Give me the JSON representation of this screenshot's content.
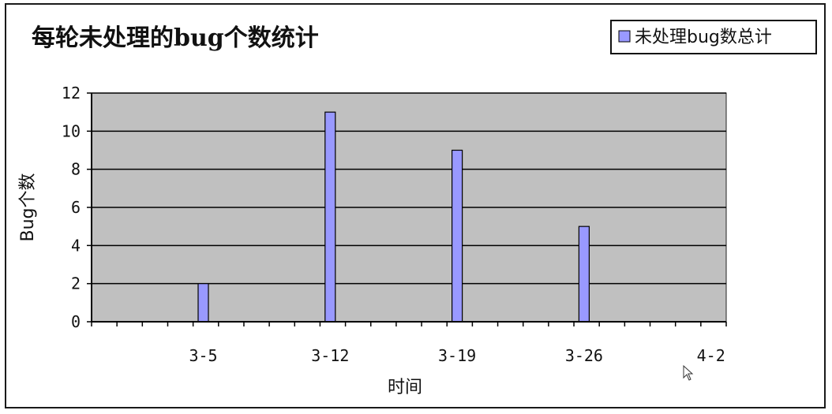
{
  "colors": {
    "plot_background": "#c0c0c0",
    "bar_fill": "#9999ff",
    "bar_stroke": "#000000",
    "gridline": "#000000"
  },
  "chart_data": {
    "type": "bar",
    "title": "每轮未处理的bug个数统计",
    "xlabel": "时间",
    "ylabel": "Bug个数",
    "ylim": [
      0,
      12
    ],
    "yticks": [
      0,
      2,
      4,
      6,
      8,
      10,
      12
    ],
    "grid": true,
    "legend_position": "top-right",
    "categories": [
      "3-5",
      "3-12",
      "3-19",
      "3-26",
      "4-2"
    ],
    "series": [
      {
        "name": "未处理bug数总计",
        "values": [
          2,
          11,
          9,
          5,
          null
        ]
      }
    ]
  }
}
